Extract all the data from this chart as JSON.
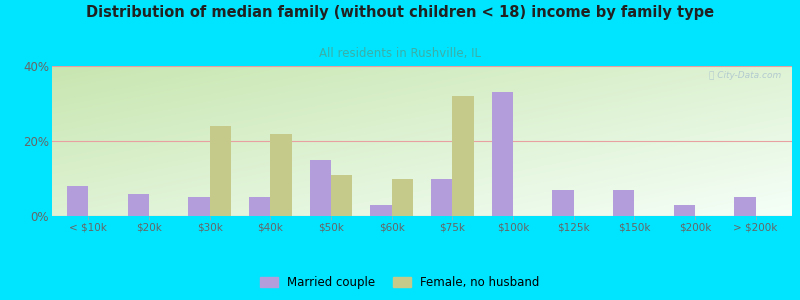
{
  "title": "Distribution of median family (without children < 18) income by family type",
  "subtitle": "All residents in Rushville, IL",
  "categories": [
    "< $10k",
    "$20k",
    "$30k",
    "$40k",
    "$50k",
    "$60k",
    "$75k",
    "$100k",
    "$125k",
    "$150k",
    "$200k",
    "> $200k"
  ],
  "married_couple": [
    8,
    6,
    5,
    5,
    15,
    3,
    10,
    33,
    7,
    7,
    3,
    5
  ],
  "female_no_husband": [
    0,
    0,
    24,
    22,
    11,
    10,
    32,
    0,
    0,
    0,
    0,
    0
  ],
  "married_color": "#b39ddb",
  "female_color": "#c5c98a",
  "background_color": "#00e5ff",
  "title_color": "#212121",
  "subtitle_color": "#3aafa9",
  "axis_color": "#666666",
  "grid_color": "#e8a0a0",
  "ylim": [
    0,
    40
  ],
  "yticks": [
    0,
    20,
    40
  ],
  "bar_width": 0.35,
  "watermark": "City-Data.com",
  "legend_married": "Married couple",
  "legend_female": "Female, no husband",
  "grad_left": "#c8e6b0",
  "grad_right": "#f5fff8"
}
